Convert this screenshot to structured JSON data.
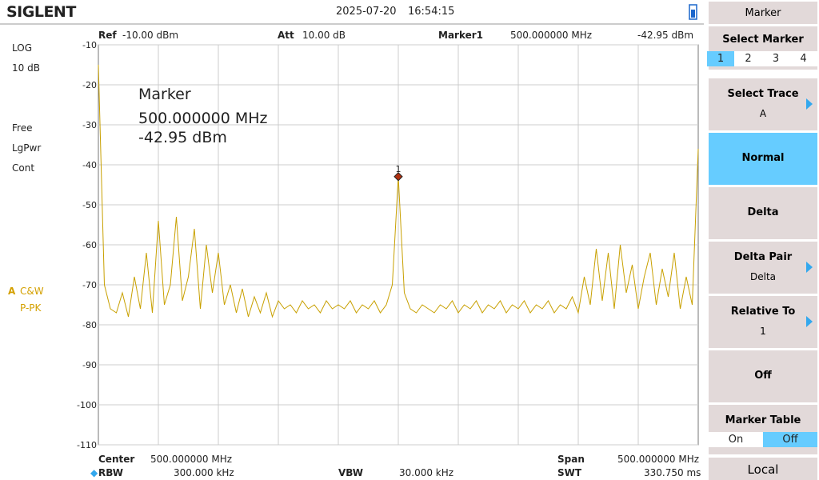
{
  "header": {
    "brand": "SIGLENT",
    "date": "2025-07-20",
    "time": "16:54:15"
  },
  "status": {
    "scale_type": "LOG",
    "scale": "10 dB",
    "trigger": "Free",
    "detector_mode": "LgPwr",
    "sweep": "Cont",
    "trace_label": "A",
    "trace_mode": "C&W",
    "trace_detector": "P-PK"
  },
  "plot_header": {
    "ref_label": "Ref",
    "ref": "-10.00 dBm",
    "att_label": "Att",
    "att": "10.00 dB",
    "marker_label": "Marker1",
    "marker_freq": "500.000000 MHz",
    "marker_level": "-42.95 dBm"
  },
  "chart_data": {
    "type": "line",
    "annotation": {
      "title": "Marker",
      "freq": "500.000000 MHz",
      "level": "-42.95 dBm"
    },
    "x": [
      250,
      255,
      260,
      265,
      270,
      275,
      280,
      285,
      290,
      295,
      300,
      305,
      310,
      315,
      320,
      325,
      330,
      335,
      340,
      345,
      350,
      355,
      360,
      365,
      370,
      375,
      380,
      385,
      390,
      395,
      400,
      405,
      410,
      415,
      420,
      425,
      430,
      435,
      440,
      445,
      450,
      455,
      460,
      465,
      470,
      475,
      480,
      485,
      490,
      495,
      500,
      505,
      510,
      515,
      520,
      525,
      530,
      535,
      540,
      545,
      550,
      555,
      560,
      565,
      570,
      575,
      580,
      585,
      590,
      595,
      600,
      605,
      610,
      615,
      620,
      625,
      630,
      635,
      640,
      645,
      650,
      655,
      660,
      665,
      670,
      675,
      680,
      685,
      690,
      695,
      700,
      705,
      710,
      715,
      720,
      725,
      730,
      735,
      740,
      745,
      750
    ],
    "series": [
      {
        "color": "#c8a000",
        "values": [
          -15,
          -70,
          -76,
          -77,
          -72,
          -78,
          -68,
          -76,
          -62,
          -77,
          -54,
          -75,
          -70,
          -53,
          -74,
          -68,
          -56,
          -76,
          -60,
          -72,
          -62,
          -75,
          -70,
          -77,
          -71,
          -78,
          -73,
          -77,
          -72,
          -78,
          -74,
          -76,
          -75,
          -77,
          -74,
          -76,
          -75,
          -77,
          -74,
          -76,
          -75,
          -76,
          -74,
          -77,
          -75,
          -76,
          -74,
          -77,
          -75,
          -70,
          -42.95,
          -72,
          -76,
          -77,
          -75,
          -76,
          -77,
          -75,
          -76,
          -74,
          -77,
          -75,
          -76,
          -74,
          -77,
          -75,
          -76,
          -74,
          -77,
          -75,
          -76,
          -74,
          -77,
          -75,
          -76,
          -74,
          -77,
          -75,
          -76,
          -73,
          -77,
          -68,
          -75,
          -61,
          -74,
          -62,
          -76,
          -60,
          -72,
          -65,
          -76,
          -68,
          -62,
          -75,
          -66,
          -73,
          -62,
          -76,
          -68,
          -75,
          -36
        ]
      }
    ],
    "xlim": [
      250,
      750
    ],
    "ylim": [
      -110,
      -10
    ],
    "yticks": [
      -10,
      -20,
      -30,
      -40,
      -50,
      -60,
      -70,
      -80,
      -90,
      -100,
      -110
    ],
    "grid": true,
    "marker": {
      "label": "1",
      "x": 500,
      "y": -42.95
    }
  },
  "footer": {
    "center_label": "Center",
    "center": "500.000000 MHz",
    "rbw_label": "RBW",
    "rbw": "300.000 kHz",
    "vbw_label": "VBW",
    "vbw": "30.000 kHz",
    "span_label": "Span",
    "span": "500.000000 MHz",
    "swt_label": "SWT",
    "swt": "330.750 ms"
  },
  "menu": {
    "title": "Marker",
    "select_marker": "Select Marker",
    "marker_tabs": [
      "1",
      "2",
      "3",
      "4"
    ],
    "items": [
      {
        "label": "Select Trace",
        "value": "A"
      },
      {
        "label": "Normal"
      },
      {
        "label": "Delta"
      },
      {
        "label": "Delta Pair",
        "value": "Delta"
      },
      {
        "label": "Relative To",
        "value": "1"
      },
      {
        "label": "Off"
      },
      {
        "label": "Marker Table"
      }
    ],
    "table_toggle": [
      "On",
      "Off"
    ],
    "local": "Local"
  }
}
